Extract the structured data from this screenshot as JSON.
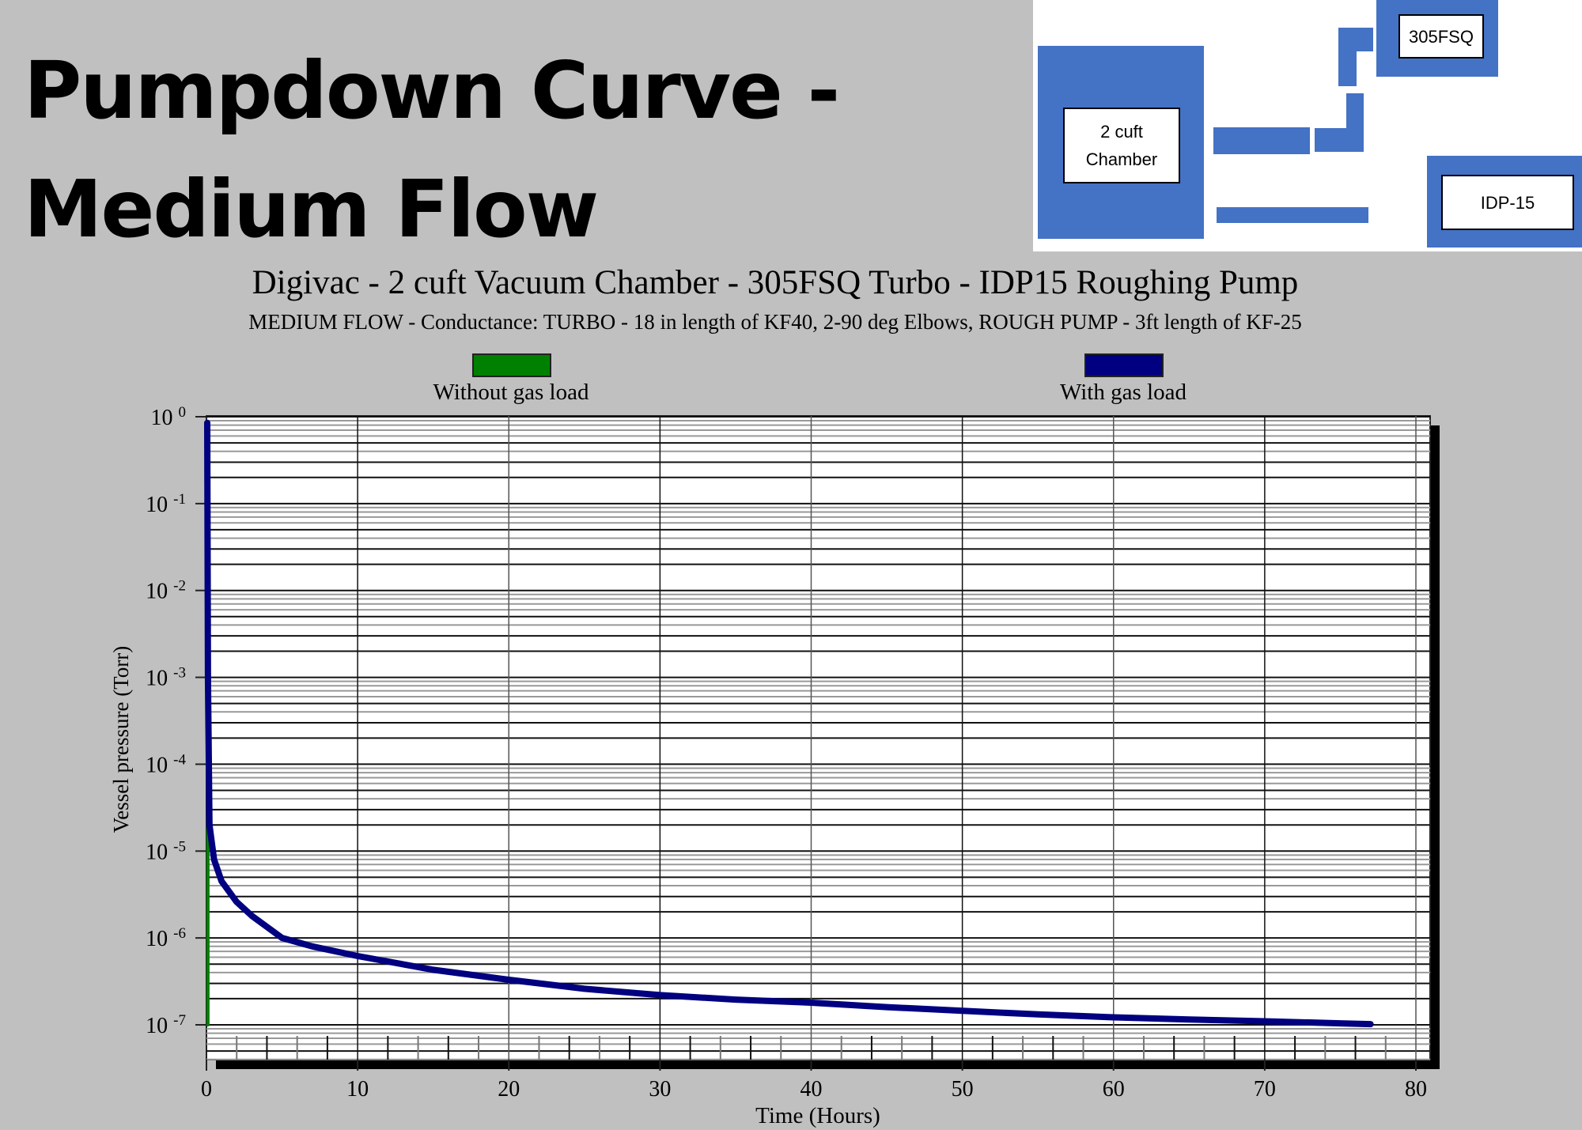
{
  "slide": {
    "title_line1": "Pumpdown Curve -",
    "title_line2": "Medium Flow"
  },
  "diagram": {
    "chamber_label_line1": "2 cuft",
    "chamber_label_line2": "Chamber",
    "turbo_label": "305FSQ",
    "rough_pump_label": "IDP-15",
    "block_color": "#4472c4"
  },
  "chart_data": {
    "type": "line",
    "title": "Digivac - 2 cuft Vacuum Chamber - 305FSQ Turbo - IDP15 Roughing Pump",
    "subtitle": "MEDIUM FLOW  - Conductance:  TURBO - 18 in length of KF40, 2-90 deg Elbows, ROUGH PUMP - 3ft length of KF-25",
    "xlabel": "Time  (Hours)",
    "ylabel": "Vessel pressure  (Torr)",
    "xlim": [
      0,
      80
    ],
    "ylim": [
      1e-07,
      1
    ],
    "yscale": "log",
    "grid": true,
    "legend_position": "top",
    "x_ticks": [
      "0",
      "10",
      "20",
      "30",
      "40",
      "50",
      "60",
      "70",
      "80"
    ],
    "y_ticks": [
      {
        "base": "10",
        "exp": "0"
      },
      {
        "base": "10",
        "exp": "-1"
      },
      {
        "base": "10",
        "exp": "-2"
      },
      {
        "base": "10",
        "exp": "-3"
      },
      {
        "base": "10",
        "exp": "-4"
      },
      {
        "base": "10",
        "exp": "-5"
      },
      {
        "base": "10",
        "exp": "-6"
      },
      {
        "base": "10",
        "exp": "-7"
      }
    ],
    "series": [
      {
        "name": "Without gas load",
        "color": "#008000",
        "x": [
          0.1,
          0.1
        ],
        "y": [
          2.5e-05,
          1e-07
        ]
      },
      {
        "name": "With gas load",
        "color": "#000080",
        "x": [
          0.05,
          0.1,
          0.2,
          0.5,
          1,
          2,
          3,
          5,
          7,
          10,
          15,
          20,
          25,
          30,
          35,
          40,
          45,
          50,
          55,
          60,
          65,
          70,
          75,
          77
        ],
        "y": [
          0.85,
          0.001,
          2e-05,
          8e-06,
          4.5e-06,
          2.6e-06,
          1.8e-06,
          1e-06,
          8e-07,
          6.2e-07,
          4.3e-07,
          3.3e-07,
          2.6e-07,
          2.2e-07,
          1.95e-07,
          1.8e-07,
          1.6e-07,
          1.45e-07,
          1.32e-07,
          1.22e-07,
          1.15e-07,
          1.1e-07,
          1.04e-07,
          1.02e-07
        ]
      }
    ]
  }
}
